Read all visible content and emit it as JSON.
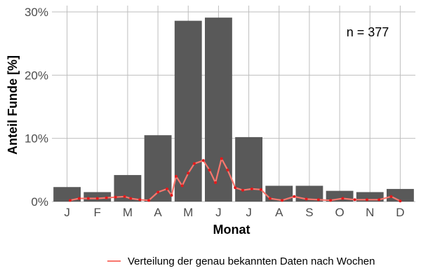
{
  "chart_data": {
    "type": "bar",
    "categories": [
      "J",
      "F",
      "M",
      "A",
      "M",
      "J",
      "J",
      "A",
      "S",
      "O",
      "N",
      "D"
    ],
    "series": [
      {
        "values": [
          2.3,
          1.5,
          4.2,
          10.5,
          28.6,
          29.1,
          10.2,
          2.5,
          2.5,
          1.7,
          1.5,
          2.0
        ]
      },
      {
        "name": "Verteilung der genau bekannten Daten nach Wochen",
        "type": "line",
        "x": [
          0.1,
          0.4,
          0.7,
          1.0,
          1.3,
          1.6,
          1.9,
          2.1,
          2.4,
          2.7,
          3.0,
          3.3,
          3.45,
          3.6,
          3.8,
          4.0,
          4.2,
          4.5,
          4.7,
          4.9,
          5.1,
          5.3,
          5.55,
          5.8,
          6.1,
          6.4,
          6.7,
          7.1,
          7.5,
          7.9,
          8.3,
          8.7,
          9.1,
          9.5,
          9.9,
          10.3,
          10.7,
          11.0
        ],
        "values": [
          0.2,
          0.5,
          0.5,
          0.5,
          0.6,
          0.7,
          0.8,
          0.5,
          0.3,
          0.2,
          1.5,
          2.0,
          1.0,
          4.0,
          2.5,
          4.5,
          6.0,
          6.5,
          5.0,
          3.0,
          6.8,
          5.0,
          2.2,
          1.8,
          2.0,
          1.9,
          0.5,
          0.2,
          0.8,
          0.4,
          0.3,
          0.2,
          0.5,
          0.3,
          0.3,
          0.3,
          0.8,
          0.1
        ]
      }
    ],
    "xlabel": "Monat",
    "ylabel": "Anteil Funde [%]",
    "ylim": [
      0,
      31
    ],
    "yticks": [
      0,
      10,
      20,
      30
    ],
    "ytick_labels": [
      "0%",
      "10%",
      "20%",
      "30%"
    ],
    "annotation": "n = 377",
    "legend_position": "bottom",
    "grid": true,
    "colors": {
      "bars": "#595959",
      "line": "#f8766d",
      "points": "#e31a1c",
      "grid": "#bebebe"
    }
  }
}
